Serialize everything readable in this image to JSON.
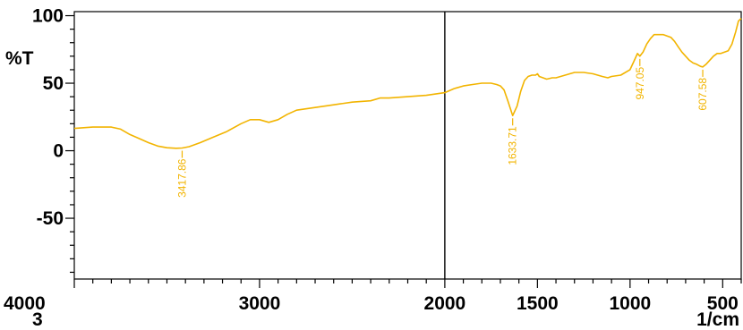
{
  "colors": {
    "trace": "#f2b400",
    "axis": "#000000",
    "cursor": "#000000"
  },
  "chart_data": {
    "type": "line",
    "title": "",
    "xlabel": "1/cm",
    "ylabel": "%T",
    "xlim": [
      4000,
      400
    ],
    "ylim": [
      -95,
      103
    ],
    "x_reversed": true,
    "grid": false,
    "x_ticks": [
      4000,
      3000,
      2000,
      1500,
      1000,
      500
    ],
    "x_tick_labels": [
      "4000",
      "3000",
      "2000",
      "1500",
      "1000",
      "500"
    ],
    "y_ticks": [
      100,
      50,
      0,
      -50
    ],
    "y_tick_labels": [
      "100",
      "50",
      "0",
      "-50"
    ],
    "trace_number": "3",
    "cursor_x": 2000,
    "series": [
      {
        "color": "#f2b400",
        "x": [
          4000,
          3900,
          3800,
          3750,
          3700,
          3650,
          3600,
          3550,
          3500,
          3450,
          3417.86,
          3380,
          3320,
          3250,
          3180,
          3100,
          3050,
          3000,
          2950,
          2900,
          2850,
          2800,
          2700,
          2600,
          2500,
          2400,
          2350,
          2300,
          2200,
          2100,
          2000,
          1950,
          1900,
          1850,
          1800,
          1750,
          1720,
          1700,
          1680,
          1660,
          1633.71,
          1610,
          1590,
          1570,
          1550,
          1530,
          1510,
          1500,
          1490,
          1470,
          1450,
          1420,
          1400,
          1350,
          1300,
          1250,
          1200,
          1150,
          1120,
          1100,
          1050,
          1000,
          980,
          960,
          947.05,
          930,
          910,
          890,
          870,
          850,
          820,
          800,
          780,
          760,
          740,
          720,
          700,
          680,
          660,
          640,
          620,
          607.58,
          590,
          570,
          550,
          530,
          510,
          490,
          470,
          450,
          430,
          415,
          400
        ],
        "y": [
          16.5,
          17.5,
          17.5,
          16,
          12,
          9,
          6,
          3.5,
          2.2,
          1.8,
          2,
          3,
          6,
          10,
          14,
          20,
          23,
          23,
          21,
          23,
          27,
          30,
          32,
          34,
          36,
          37,
          39,
          39,
          40,
          41,
          43,
          46,
          48,
          49,
          50,
          50,
          49,
          48,
          45,
          37,
          26,
          33,
          44,
          52,
          55,
          56,
          56,
          57,
          55,
          54,
          53,
          54,
          54,
          56,
          58,
          58,
          57,
          55,
          54,
          55,
          56,
          60,
          66,
          72,
          70,
          73,
          79,
          83,
          86,
          86,
          86,
          85,
          84,
          81,
          77,
          73,
          70,
          67,
          65,
          64,
          62.5,
          62,
          64,
          67,
          70,
          72,
          72,
          73,
          74,
          79,
          88,
          96,
          98
        ]
      }
    ],
    "annotations": [
      {
        "label": "3417.86",
        "x": 3417.86,
        "y": 2
      },
      {
        "label": "1633.71",
        "x": 1633.71,
        "y": 26
      },
      {
        "label": "947.05",
        "x": 947.05,
        "y": 70
      },
      {
        "label": "607.58",
        "x": 607.58,
        "y": 62
      }
    ]
  }
}
